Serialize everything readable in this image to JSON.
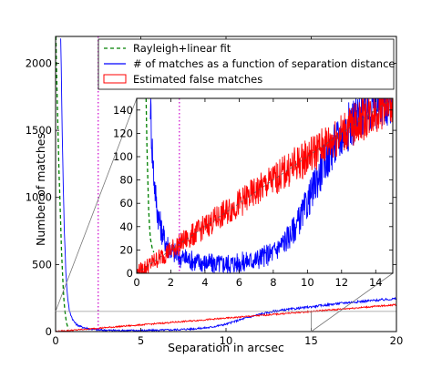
{
  "chart_data": [
    {
      "type": "line",
      "xlabel": "Separation in arcsec",
      "ylabel": "Number of matches",
      "xlim": [
        0,
        20
      ],
      "ylim": [
        0,
        2200
      ],
      "x_ticks": [
        0,
        5,
        10,
        15,
        20
      ],
      "y_ticks": [
        0,
        500,
        1000,
        1500,
        2000
      ],
      "grid": false,
      "legend_position": "top-right",
      "series": [
        {
          "name": "Rayleigh+linear fit",
          "style": "dashed",
          "color": "#008000",
          "x": [
            0.02,
            0.05,
            0.1,
            0.15,
            0.2,
            0.25,
            0.3,
            0.35,
            0.4,
            0.45,
            0.5,
            0.55,
            0.6,
            0.65,
            0.7,
            0.75,
            0.8
          ],
          "y": [
            2200,
            2000,
            1700,
            1450,
            1200,
            1000,
            800,
            600,
            450,
            320,
            220,
            150,
            100,
            60,
            40,
            25,
            20
          ]
        },
        {
          "name": "# of matches as a function of separation distance",
          "style": "solid",
          "color": "#0000ff",
          "x": [
            0.3,
            0.4,
            0.5,
            0.6,
            0.7,
            0.8,
            1.0,
            1.2,
            1.5,
            2.0,
            2.5,
            3,
            4,
            5,
            6,
            7,
            8,
            9,
            10,
            11,
            12,
            13,
            14,
            15,
            16,
            17,
            18,
            19,
            20
          ],
          "y": [
            2200,
            1400,
            800,
            450,
            260,
            160,
            90,
            55,
            35,
            20,
            12,
            10,
            8,
            8,
            10,
            14,
            20,
            30,
            55,
            95,
            130,
            155,
            170,
            185,
            200,
            215,
            225,
            235,
            245
          ]
        },
        {
          "name": "Estimated false matches",
          "style": "solid",
          "color": "#ff0000",
          "x": [
            0,
            1,
            2,
            3,
            4,
            5,
            6,
            7,
            8,
            9,
            10,
            11,
            12,
            13,
            14,
            15,
            16,
            17,
            18,
            19,
            20
          ],
          "y": [
            0,
            10,
            20,
            30,
            40,
            50,
            60,
            70,
            80,
            90,
            100,
            110,
            120,
            130,
            140,
            150,
            160,
            170,
            180,
            190,
            200
          ]
        }
      ],
      "annotations": [
        {
          "type": "vline",
          "x": 2.5,
          "style": "dotted",
          "color": "#cc00cc"
        },
        {
          "type": "hline",
          "y": 150,
          "style": "solid",
          "color": "#999999"
        }
      ]
    },
    {
      "type": "line",
      "role": "inset",
      "xlim": [
        0,
        15
      ],
      "ylim": [
        0,
        150
      ],
      "x_ticks": [
        0,
        2,
        4,
        6,
        8,
        10,
        12,
        14
      ],
      "y_ticks": [
        0,
        20,
        40,
        60,
        80,
        100,
        120,
        140
      ],
      "grid": false,
      "series": [
        {
          "name": "Rayleigh+linear fit",
          "style": "dashed",
          "color": "#008000",
          "x": [
            0.55,
            0.6,
            0.65,
            0.7,
            0.75,
            0.8,
            0.9,
            1.0
          ],
          "y": [
            150,
            110,
            80,
            55,
            40,
            30,
            22,
            18
          ]
        },
        {
          "name": "# of matches as a function of separation distance",
          "style": "solid",
          "color": "#0000ff",
          "x": [
            0.8,
            0.9,
            1.0,
            1.1,
            1.2,
            1.4,
            1.6,
            1.8,
            2.0,
            2.5,
            3.0,
            3.5,
            4.0,
            4.5,
            5.0,
            6.0,
            7.0,
            8.0,
            8.5,
            9.0,
            9.5,
            10.0,
            10.5,
            11.0,
            11.5,
            12.0,
            12.5,
            13.0,
            13.5,
            14.0,
            14.5,
            15.0
          ],
          "y": [
            150,
            110,
            85,
            68,
            55,
            40,
            30,
            25,
            20,
            14,
            12,
            10,
            9,
            8,
            8,
            9,
            12,
            18,
            25,
            33,
            45,
            60,
            78,
            95,
            108,
            118,
            128,
            135,
            140,
            145,
            148,
            150
          ]
        },
        {
          "name": "Estimated false matches",
          "style": "solid",
          "color": "#ff0000",
          "x": [
            0,
            1,
            2,
            3,
            4,
            5,
            6,
            7,
            8,
            9,
            10,
            11,
            12,
            13,
            14,
            15
          ],
          "y": [
            0,
            10,
            20,
            30,
            40,
            50,
            60,
            70,
            80,
            90,
            100,
            110,
            120,
            130,
            140,
            150
          ]
        }
      ],
      "annotations": [
        {
          "type": "vline",
          "x": 2.5,
          "style": "dotted",
          "color": "#cc00cc"
        }
      ]
    }
  ]
}
